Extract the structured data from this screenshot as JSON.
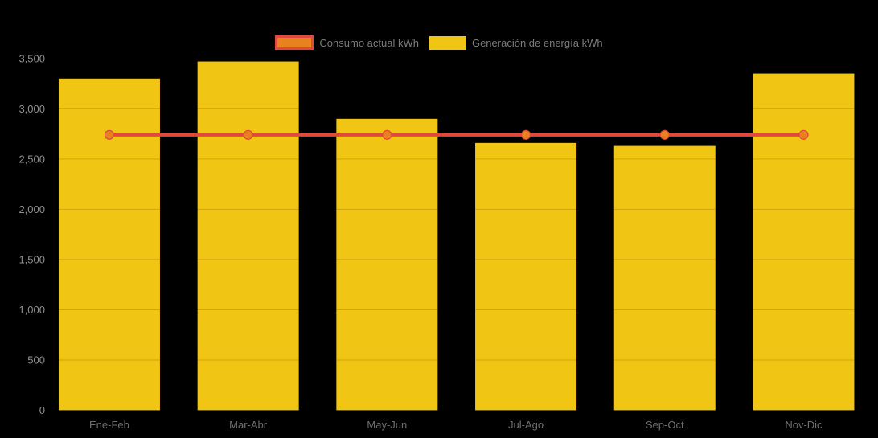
{
  "chart_data": {
    "type": "bar",
    "combo": "bar+line",
    "categories": [
      "Ene-Feb",
      "Mar-Abr",
      "May-Jun",
      "Jul-Ago",
      "Sep-Oct",
      "Nov-Dic"
    ],
    "series": [
      {
        "name": "Consumo actual kWh",
        "type": "line",
        "values": [
          2740,
          2740,
          2740,
          2740,
          2740,
          2740
        ]
      },
      {
        "name": "Generación de energía kWh",
        "type": "bar",
        "values": [
          3300,
          3470,
          2900,
          2660,
          2630,
          3350
        ]
      }
    ],
    "title": "",
    "xlabel": "",
    "ylabel": "",
    "ylim": [
      0,
      3500
    ],
    "ytick_step": 500,
    "ytick_labels": [
      "0",
      "500",
      "1,000",
      "1,500",
      "2,000",
      "2,500",
      "3,000",
      "3,500"
    ],
    "grid": "faint horizontal",
    "legend_position": "top-center"
  },
  "colors": {
    "background": "#000000",
    "bar_fill": "#F0C514",
    "line_stroke": "#E0493B",
    "marker_fill": "#E8821E",
    "marker_stroke": "#E0493B",
    "ytick_label": "#8F8F8F",
    "xtick_label": "#6F6F6F",
    "legend_text": "#7B7B7B",
    "gridline": "rgba(0,0,0,0.15)"
  }
}
